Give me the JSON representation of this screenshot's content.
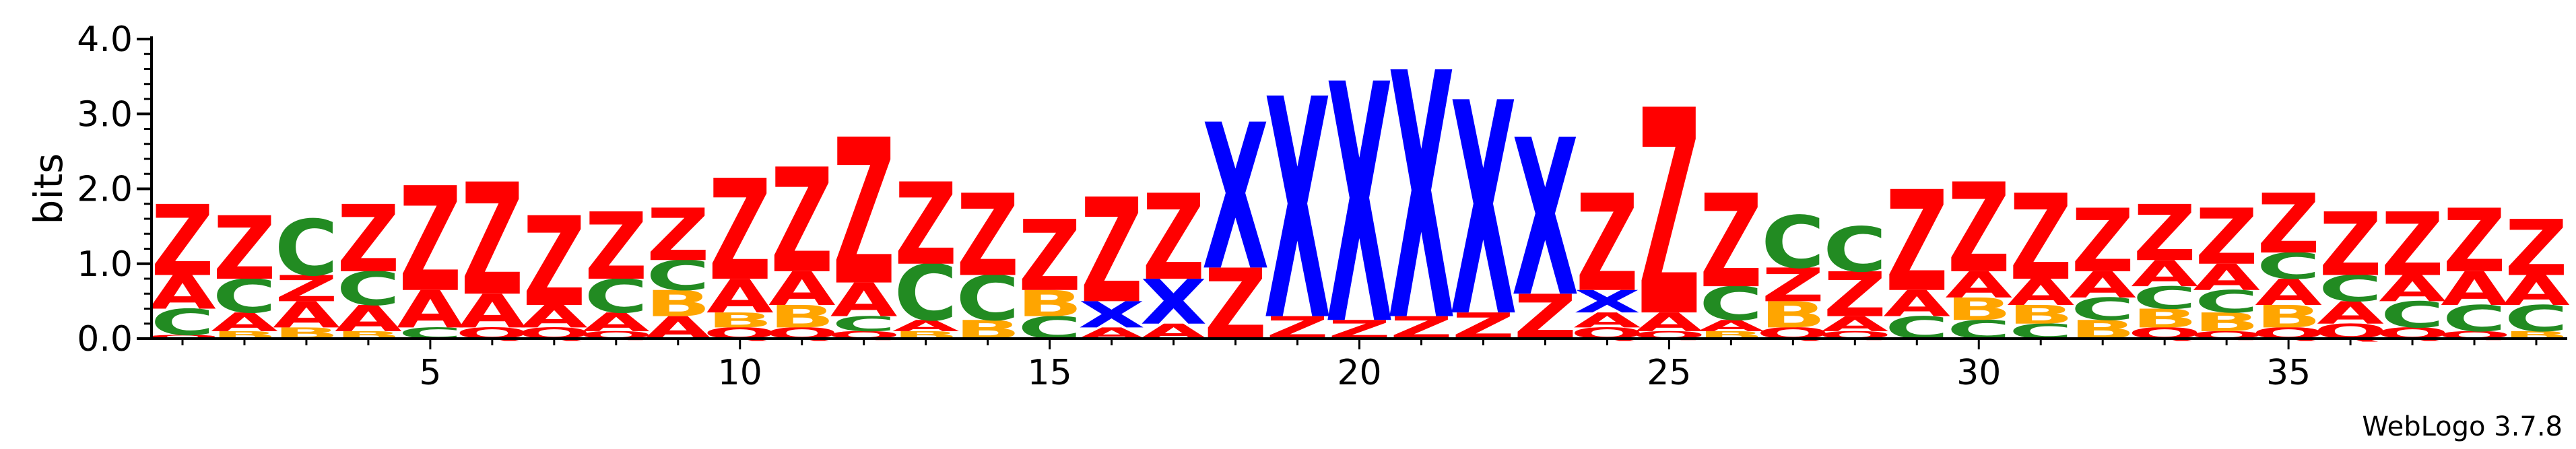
{
  "chart_data": {
    "type": "sequence-logo",
    "ylabel": "bits",
    "ylim": [
      0,
      4.0
    ],
    "yticks": [
      "0.0",
      "1.0",
      "2.0",
      "3.0",
      "4.0"
    ],
    "xticks": [
      "5",
      "10",
      "15",
      "20",
      "25",
      "30",
      "35"
    ],
    "positions": 39,
    "colors": {
      "Z": "#ff0000",
      "A": "#ff0000",
      "C": "#228b22",
      "B": "#ffa500",
      "X": "#0000ff",
      "Q": "#ff0000",
      "O": "#ff0000"
    },
    "stacks": [
      [
        [
          "Q",
          0.05
        ],
        [
          "C",
          0.35
        ],
        [
          "A",
          0.45
        ],
        [
          "Z",
          0.95
        ]
      ],
      [
        [
          "B",
          0.1
        ],
        [
          "A",
          0.25
        ],
        [
          "C",
          0.45
        ],
        [
          "Z",
          0.85
        ]
      ],
      [
        [
          "B",
          0.15
        ],
        [
          "A",
          0.35
        ],
        [
          "Z",
          0.35
        ],
        [
          "C",
          0.75
        ]
      ],
      [
        [
          "B",
          0.1
        ],
        [
          "A",
          0.35
        ],
        [
          "C",
          0.45
        ],
        [
          "Z",
          0.9
        ]
      ],
      [
        [
          "C",
          0.15
        ],
        [
          "A",
          0.5
        ],
        [
          "Z",
          1.4
        ]
      ],
      [
        [
          "Q",
          0.15
        ],
        [
          "A",
          0.45
        ],
        [
          "Z",
          1.5
        ]
      ],
      [
        [
          "Q",
          0.15
        ],
        [
          "A",
          0.3
        ],
        [
          "Z",
          1.2
        ]
      ],
      [
        [
          "Q",
          0.1
        ],
        [
          "A",
          0.25
        ],
        [
          "C",
          0.45
        ],
        [
          "Z",
          0.9
        ]
      ],
      [
        [
          "A",
          0.3
        ],
        [
          "B",
          0.35
        ],
        [
          "C",
          0.4
        ],
        [
          "Z",
          0.7
        ]
      ],
      [
        [
          "Q",
          0.15
        ],
        [
          "B",
          0.2
        ],
        [
          "A",
          0.45
        ],
        [
          "Z",
          1.35
        ]
      ],
      [
        [
          "Q",
          0.15
        ],
        [
          "B",
          0.3
        ],
        [
          "A",
          0.45
        ],
        [
          "Z",
          1.4
        ]
      ],
      [
        [
          "Q",
          0.1
        ],
        [
          "C",
          0.2
        ],
        [
          "A",
          0.45
        ],
        [
          "Z",
          1.95
        ]
      ],
      [
        [
          "B",
          0.1
        ],
        [
          "A",
          0.15
        ],
        [
          "C",
          0.75
        ],
        [
          "Z",
          1.1
        ]
      ],
      [
        [
          "B",
          0.25
        ],
        [
          "C",
          0.6
        ],
        [
          "Z",
          1.1
        ]
      ],
      [
        [
          "C",
          0.3
        ],
        [
          "B",
          0.35
        ],
        [
          "Z",
          0.95
        ]
      ],
      [
        [
          "A",
          0.15
        ],
        [
          "X",
          0.35
        ],
        [
          "Z",
          1.4
        ]
      ],
      [
        [
          "A",
          0.2
        ],
        [
          "X",
          0.6
        ],
        [
          "Z",
          1.15
        ]
      ],
      [
        [
          "Z",
          0.95
        ],
        [
          "X",
          1.95
        ]
      ],
      [
        [
          "Z",
          0.3
        ],
        [
          "X",
          2.95
        ]
      ],
      [
        [
          "Z",
          0.25
        ],
        [
          "X",
          3.2
        ]
      ],
      [
        [
          "Z",
          0.3
        ],
        [
          "X",
          3.3
        ]
      ],
      [
        [
          "Z",
          0.35
        ],
        [
          "X",
          2.85
        ]
      ],
      [
        [
          "Z",
          0.6
        ],
        [
          "X",
          2.1
        ]
      ],
      [
        [
          "Q",
          0.15
        ],
        [
          "A",
          0.2
        ],
        [
          "X",
          0.3
        ],
        [
          "Z",
          1.3
        ]
      ],
      [
        [
          "Q",
          0.1
        ],
        [
          "A",
          0.25
        ],
        [
          "Z",
          2.75
        ]
      ],
      [
        [
          "B",
          0.1
        ],
        [
          "A",
          0.15
        ],
        [
          "C",
          0.45
        ],
        [
          "Z",
          1.25
        ]
      ],
      [
        [
          "Q",
          0.15
        ],
        [
          "B",
          0.35
        ],
        [
          "Z",
          0.45
        ],
        [
          "C",
          0.7
        ]
      ],
      [
        [
          "Q",
          0.1
        ],
        [
          "A",
          0.2
        ],
        [
          "Z",
          0.6
        ],
        [
          "C",
          0.6
        ]
      ],
      [
        [
          "C",
          0.3
        ],
        [
          "A",
          0.35
        ],
        [
          "Z",
          1.35
        ]
      ],
      [
        [
          "C",
          0.25
        ],
        [
          "B",
          0.3
        ],
        [
          "A",
          0.35
        ],
        [
          "Z",
          1.2
        ]
      ],
      [
        [
          "C",
          0.2
        ],
        [
          "B",
          0.25
        ],
        [
          "A",
          0.35
        ],
        [
          "Z",
          1.15
        ]
      ],
      [
        [
          "B",
          0.25
        ],
        [
          "C",
          0.3
        ],
        [
          "A",
          0.35
        ],
        [
          "Z",
          0.85
        ]
      ],
      [
        [
          "Q",
          0.15
        ],
        [
          "B",
          0.25
        ],
        [
          "C",
          0.3
        ],
        [
          "A",
          0.35
        ],
        [
          "Z",
          0.75
        ]
      ],
      [
        [
          "Q",
          0.1
        ],
        [
          "B",
          0.25
        ],
        [
          "C",
          0.3
        ],
        [
          "A",
          0.35
        ],
        [
          "Z",
          0.75
        ]
      ],
      [
        [
          "Q",
          0.15
        ],
        [
          "B",
          0.3
        ],
        [
          "A",
          0.35
        ],
        [
          "C",
          0.35
        ],
        [
          "Z",
          0.8
        ]
      ],
      [
        [
          "Q",
          0.2
        ],
        [
          "A",
          0.3
        ],
        [
          "C",
          0.35
        ],
        [
          "Z",
          0.85
        ]
      ],
      [
        [
          "Q",
          0.15
        ],
        [
          "C",
          0.35
        ],
        [
          "A",
          0.35
        ],
        [
          "Z",
          0.85
        ]
      ],
      [
        [
          "Q",
          0.1
        ],
        [
          "C",
          0.35
        ],
        [
          "A",
          0.45
        ],
        [
          "Z",
          0.85
        ]
      ],
      [
        [
          "B",
          0.1
        ],
        [
          "C",
          0.35
        ],
        [
          "A",
          0.4
        ],
        [
          "Z",
          0.75
        ]
      ]
    ]
  },
  "footer": "WebLogo 3.7.8"
}
